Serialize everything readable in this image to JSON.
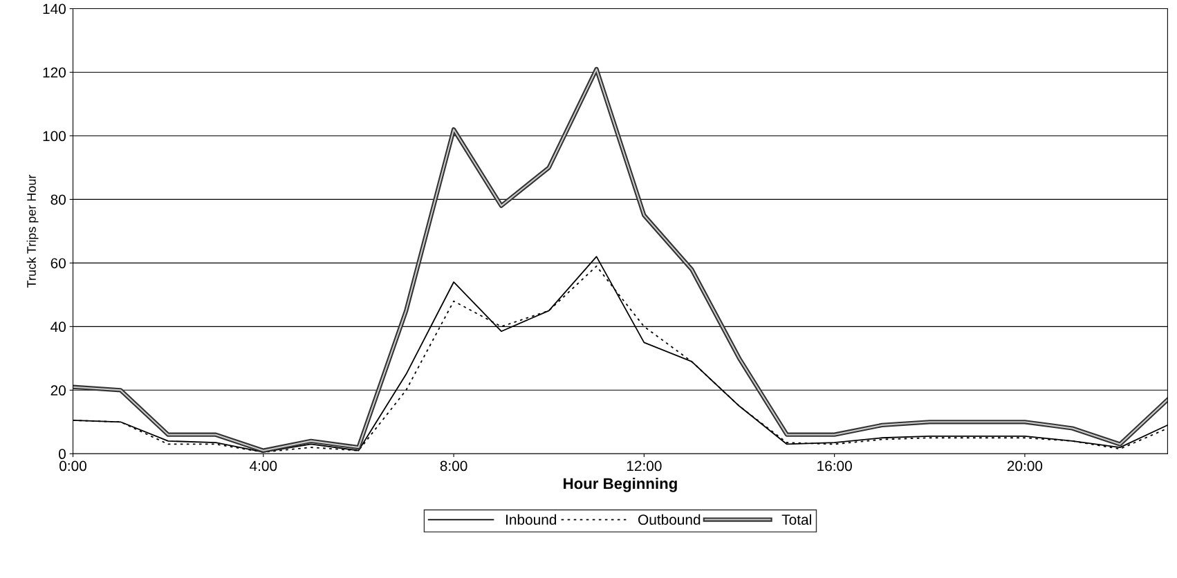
{
  "chart_data": {
    "type": "line",
    "xlabel": "Hour Beginning",
    "ylabel": "Truck Trips per Hour",
    "x": [
      0,
      1,
      2,
      3,
      4,
      5,
      6,
      7,
      8,
      9,
      10,
      11,
      12,
      13,
      14,
      15,
      16,
      17,
      18,
      19,
      20,
      21,
      22,
      23
    ],
    "series": [
      {
        "name": "Inbound",
        "color": "#000000",
        "line_style": "solid",
        "values": [
          10.5,
          10,
          4,
          3.5,
          0.5,
          3,
          1,
          25,
          54,
          38.5,
          45,
          62,
          35,
          29,
          15,
          3,
          3.5,
          5,
          5.5,
          5.5,
          5.5,
          4,
          2,
          9
        ]
      },
      {
        "name": "Outbound",
        "color": "#000000",
        "line_style": "dotted",
        "values": [
          10.5,
          10,
          3,
          3,
          0.5,
          2,
          1,
          20,
          48,
          40,
          45,
          59,
          40,
          29,
          15,
          3.5,
          3,
          4.5,
          5,
          5,
          5,
          4,
          1.5,
          8
        ]
      },
      {
        "name": "Total",
        "color": "#333333",
        "line_style": "solid",
        "values": [
          21,
          20,
          6,
          6,
          1,
          4,
          2,
          45,
          102,
          78,
          90,
          121,
          75,
          58,
          30,
          6,
          6,
          9,
          10,
          10,
          10,
          8,
          3,
          17
        ]
      }
    ],
    "xlim": [
      0,
      23
    ],
    "xticks": [
      {
        "value": 0,
        "label": "0:00"
      },
      {
        "value": 4,
        "label": "4:00"
      },
      {
        "value": 8,
        "label": "8:00"
      },
      {
        "value": 12,
        "label": "12:00"
      },
      {
        "value": 16,
        "label": "16:00"
      },
      {
        "value": 20,
        "label": "20:00"
      }
    ],
    "ylim": [
      0,
      140
    ],
    "yticks": [
      0,
      20,
      40,
      60,
      80,
      100,
      120,
      140
    ],
    "grid": "y",
    "legend": "bottom",
    "marker": "none"
  }
}
